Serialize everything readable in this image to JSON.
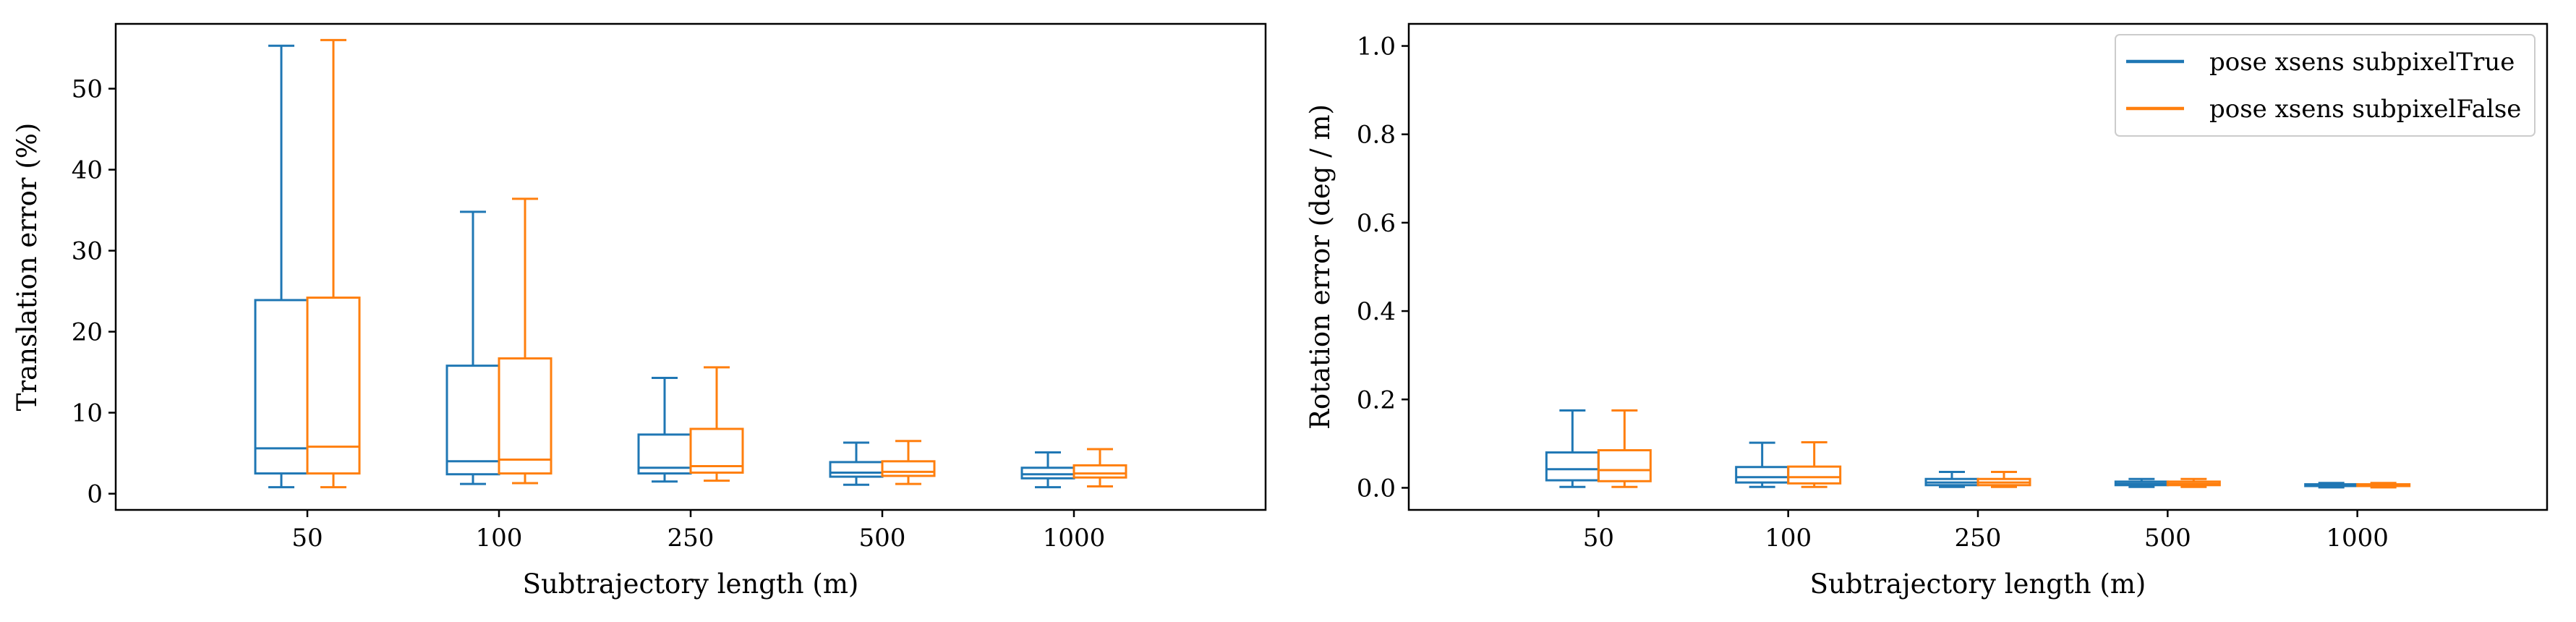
{
  "chart_data": [
    {
      "type": "box",
      "xlabel": "Subtrajectory length (m)",
      "ylabel": "Translation error (%)",
      "categories": [
        "50",
        "100",
        "250",
        "500",
        "1000"
      ],
      "ylim": [
        -2,
        58
      ],
      "yticks": [
        0,
        10,
        20,
        30,
        40,
        50
      ],
      "ytick_labels": [
        "0",
        "10",
        "20",
        "30",
        "40",
        "50"
      ],
      "grid": false,
      "legend": null,
      "series": [
        {
          "name": "pose xsens subpixelTrue",
          "color": "#1f77b4",
          "boxes": [
            {
              "whislo": 0.8,
              "q1": 2.5,
              "med": 5.6,
              "q3": 23.9,
              "whishi": 55.3
            },
            {
              "whislo": 1.2,
              "q1": 2.4,
              "med": 4.0,
              "q3": 15.8,
              "whishi": 34.8
            },
            {
              "whislo": 1.5,
              "q1": 2.5,
              "med": 3.2,
              "q3": 7.3,
              "whishi": 14.3
            },
            {
              "whislo": 1.1,
              "q1": 2.1,
              "med": 2.6,
              "q3": 3.9,
              "whishi": 6.3
            },
            {
              "whislo": 0.8,
              "q1": 1.9,
              "med": 2.4,
              "q3": 3.2,
              "whishi": 5.1
            }
          ]
        },
        {
          "name": "pose xsens subpixelFalse",
          "color": "#ff7f0e",
          "boxes": [
            {
              "whislo": 0.8,
              "q1": 2.5,
              "med": 5.8,
              "q3": 24.2,
              "whishi": 56.0
            },
            {
              "whislo": 1.3,
              "q1": 2.5,
              "med": 4.2,
              "q3": 16.7,
              "whishi": 36.4
            },
            {
              "whislo": 1.6,
              "q1": 2.6,
              "med": 3.4,
              "q3": 8.0,
              "whishi": 15.6
            },
            {
              "whislo": 1.2,
              "q1": 2.2,
              "med": 2.7,
              "q3": 4.0,
              "whishi": 6.5
            },
            {
              "whislo": 0.9,
              "q1": 2.0,
              "med": 2.5,
              "q3": 3.5,
              "whishi": 5.5
            }
          ]
        }
      ]
    },
    {
      "type": "box",
      "xlabel": "Subtrajectory length (m)",
      "ylabel": "Rotation error (deg / m)",
      "categories": [
        "50",
        "100",
        "250",
        "500",
        "1000"
      ],
      "ylim": [
        -0.05,
        1.05
      ],
      "yticks": [
        0.0,
        0.2,
        0.4,
        0.6,
        0.8,
        1.0
      ],
      "ytick_labels": [
        "0.0",
        "0.2",
        "0.4",
        "0.6",
        "0.8",
        "1.0"
      ],
      "grid": false,
      "legend": "top-right",
      "series": [
        {
          "name": "pose xsens subpixelTrue",
          "color": "#1f77b4",
          "boxes": [
            {
              "whislo": 0.002,
              "q1": 0.017,
              "med": 0.042,
              "q3": 0.08,
              "whishi": 0.175
            },
            {
              "whislo": 0.002,
              "q1": 0.012,
              "med": 0.024,
              "q3": 0.047,
              "whishi": 0.102
            },
            {
              "whislo": 0.002,
              "q1": 0.006,
              "med": 0.012,
              "q3": 0.02,
              "whishi": 0.036
            },
            {
              "whislo": 0.002,
              "q1": 0.006,
              "med": 0.009,
              "q3": 0.014,
              "whishi": 0.02
            },
            {
              "whislo": 0.001,
              "q1": 0.004,
              "med": 0.006,
              "q3": 0.008,
              "whishi": 0.011
            }
          ]
        },
        {
          "name": "pose xsens subpixelFalse",
          "color": "#ff7f0e",
          "boxes": [
            {
              "whislo": 0.002,
              "q1": 0.015,
              "med": 0.04,
              "q3": 0.085,
              "whishi": 0.175
            },
            {
              "whislo": 0.002,
              "q1": 0.01,
              "med": 0.024,
              "q3": 0.048,
              "whishi": 0.103
            },
            {
              "whislo": 0.002,
              "q1": 0.006,
              "med": 0.012,
              "q3": 0.02,
              "whishi": 0.036
            },
            {
              "whislo": 0.002,
              "q1": 0.006,
              "med": 0.009,
              "q3": 0.014,
              "whishi": 0.02
            },
            {
              "whislo": 0.001,
              "q1": 0.004,
              "med": 0.006,
              "q3": 0.008,
              "whishi": 0.011
            }
          ]
        }
      ]
    }
  ]
}
